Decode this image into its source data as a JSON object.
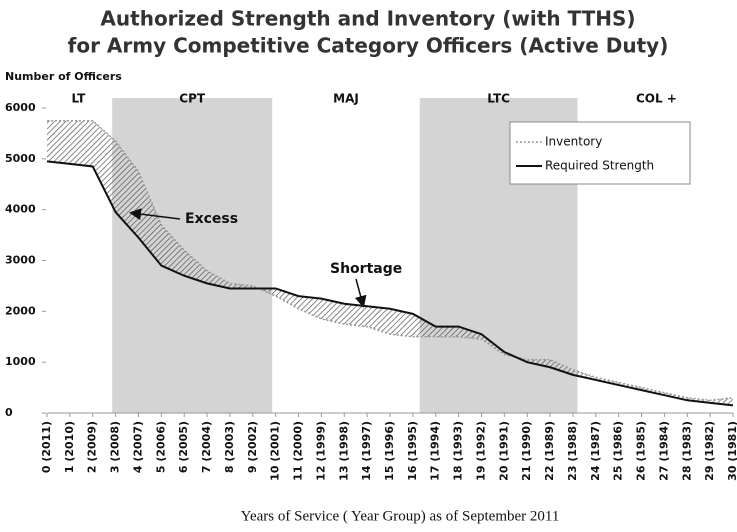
{
  "chart_data": {
    "type": "line",
    "title": "Authorized Strength and Inventory (with TTHS)",
    "subtitle": "for Army Competitive Category Officers (Active Duty)",
    "y_label": "Number of Officers",
    "x_label": "Years of Service ( Year Group) as of September 2011",
    "categories": [
      "0 (2011)",
      "1 (2010)",
      "2 (2009)",
      "3 (2008)",
      "4 (2007)",
      "5 (2006)",
      "6 (2005)",
      "7 (2004)",
      "8 (2003)",
      "9 (2002)",
      "10 (2001)",
      "11 (2000)",
      "12 (1999)",
      "13 (1998)",
      "14 (1997)",
      "15 (1996)",
      "16 (1995)",
      "17 (1994)",
      "18 (1993)",
      "19 (1992)",
      "20 (1991)",
      "21 (1990)",
      "22 (1989)",
      "23 (1988)",
      "24 (1987)",
      "25 (1986)",
      "26 (1985)",
      "27 (1984)",
      "28 (1983)",
      "29 (1982)",
      "30 (1981)"
    ],
    "series": [
      {
        "name": "Inventory",
        "color": "#999999",
        "values": [
          5750,
          5750,
          5750,
          5350,
          4750,
          3700,
          3200,
          2800,
          2550,
          2500,
          2300,
          2050,
          1850,
          1750,
          1700,
          1550,
          1500,
          1500,
          1500,
          1450,
          1150,
          1050,
          1050,
          850,
          700,
          600,
          500,
          400,
          300,
          250,
          300
        ]
      },
      {
        "name": "Required Strength",
        "color": "#111111",
        "values": [
          4950,
          4900,
          4850,
          3950,
          3450,
          2900,
          2700,
          2550,
          2450,
          2450,
          2450,
          2300,
          2250,
          2150,
          2100,
          2050,
          1950,
          1700,
          1700,
          1550,
          1200,
          1000,
          900,
          750,
          650,
          550,
          450,
          350,
          250,
          200,
          150
        ]
      }
    ],
    "bands": [
      {
        "label": "LT",
        "shaded": false
      },
      {
        "label": "CPT",
        "shaded": true
      },
      {
        "label": "MAJ",
        "shaded": false
      },
      {
        "label": "LTC",
        "shaded": true
      },
      {
        "label": "COL +",
        "shaded": false
      }
    ],
    "annotations": [
      "Excess",
      "Shortage"
    ],
    "ylim": [
      0,
      6000
    ],
    "yticks": [
      0,
      1000,
      2000,
      3000,
      4000,
      5000,
      6000
    ],
    "legend": "upper right"
  }
}
